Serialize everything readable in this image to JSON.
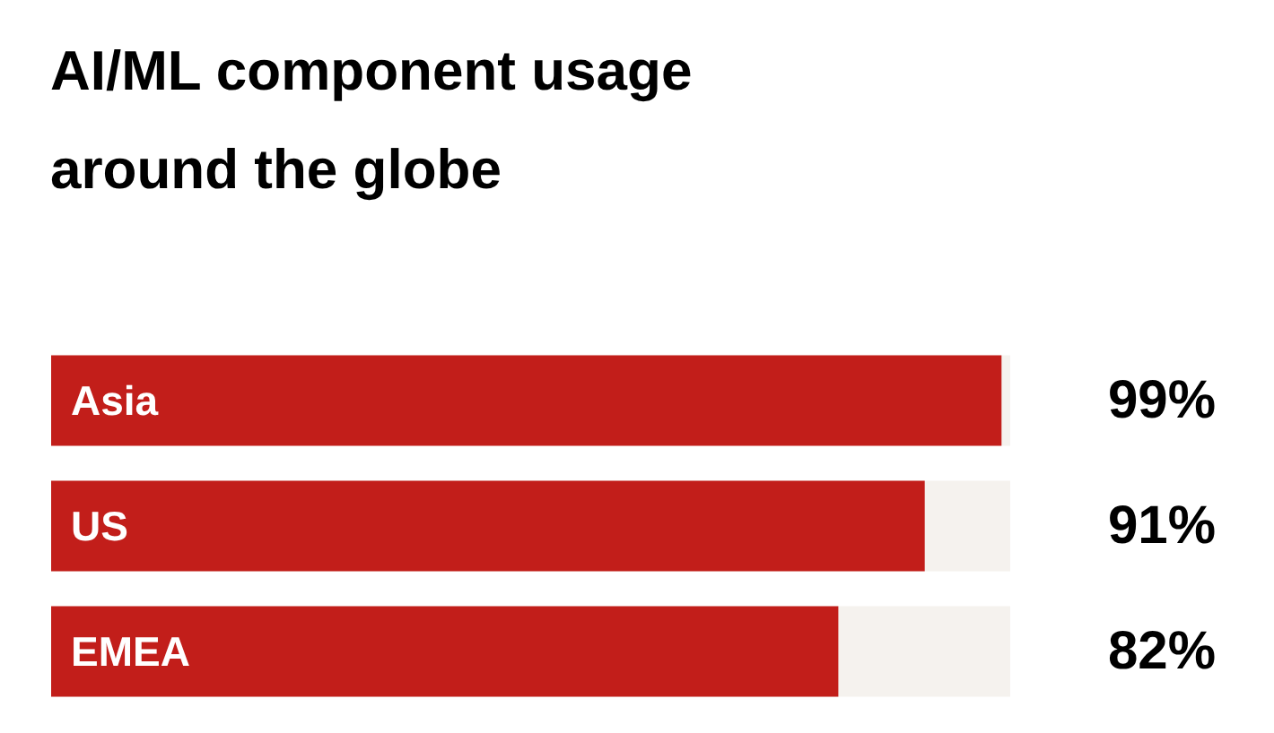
{
  "chart_data": {
    "type": "bar",
    "orientation": "horizontal",
    "title": "AI/ML component usage around the globe",
    "categories": [
      "Asia",
      "US",
      "EMEA"
    ],
    "series": [
      {
        "color": "#c21e1a",
        "values": [
          99,
          91,
          82
        ],
        "value_labels": [
          "99%",
          "91%",
          "82%"
        ]
      }
    ],
    "xlim": [
      0,
      100
    ],
    "tick_labels": false,
    "grid": false
  }
}
